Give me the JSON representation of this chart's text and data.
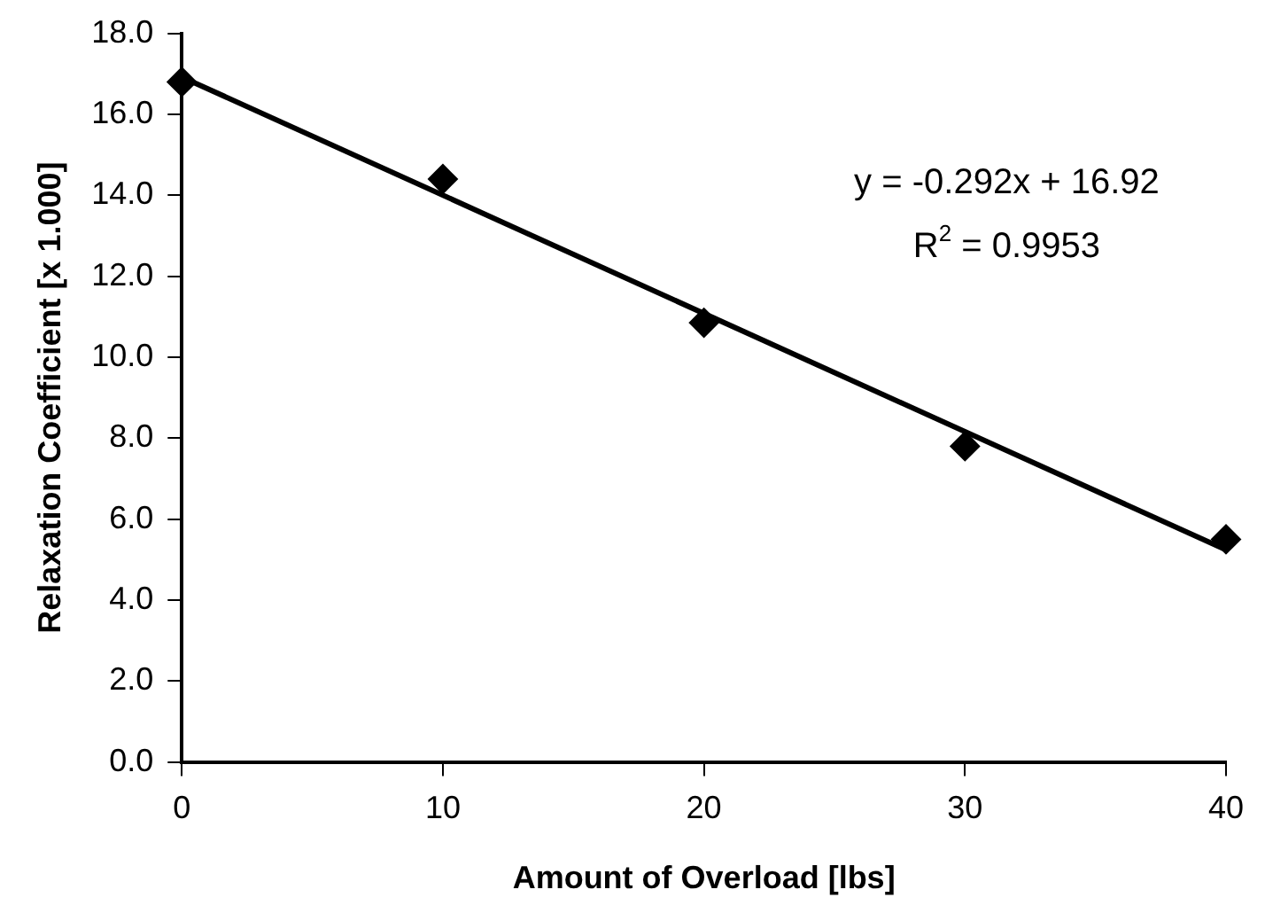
{
  "chart_data": {
    "type": "scatter",
    "xlabel": "Amount of Overload [lbs]",
    "ylabel": "Relaxation Coefficient [x 1.000]",
    "xlim": [
      0,
      40
    ],
    "xticks": [
      0,
      10,
      20,
      30,
      40
    ],
    "ylim": [
      0,
      18
    ],
    "yticks": [
      {
        "value": 0,
        "label": "0.0"
      },
      {
        "value": 2,
        "label": "2.0"
      },
      {
        "value": 4,
        "label": "4.0"
      },
      {
        "value": 6,
        "label": "6.0"
      },
      {
        "value": 8,
        "label": "8.0"
      },
      {
        "value": 10,
        "label": "10.0"
      },
      {
        "value": 12,
        "label": "12.0"
      },
      {
        "value": 14,
        "label": "14.0"
      },
      {
        "value": 16,
        "label": "16.0"
      },
      {
        "value": 18,
        "label": "18.0"
      }
    ],
    "grid": false,
    "legend": false,
    "marker": "diamond",
    "series": [
      {
        "color": "#000000",
        "x": [
          0,
          10,
          20,
          30,
          40
        ],
        "values": [
          16.8,
          14.4,
          10.85,
          7.8,
          5.5
        ]
      },
      {
        "type": "line",
        "color": "#000000",
        "marker": "none",
        "x": [
          0,
          40
        ],
        "values": [
          16.92,
          5.24
        ]
      }
    ],
    "annotations": [
      "y = -0.292x + 16.92",
      "R$^{2}$ = 0.9953"
    ]
  }
}
